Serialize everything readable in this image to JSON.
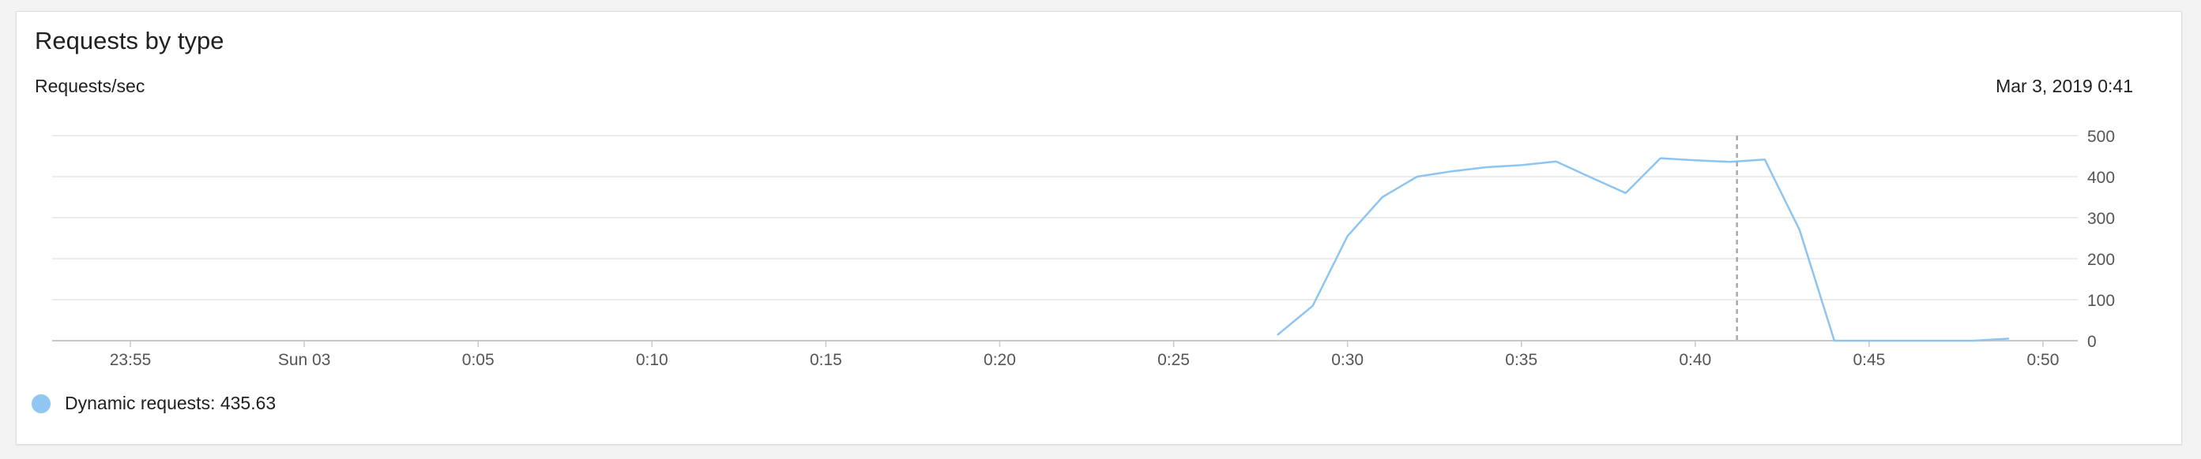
{
  "card": {
    "title": "Requests by type",
    "unit_label": "Requests/sec",
    "hover_timestamp": "Mar 3, 2019 0:41"
  },
  "legend": {
    "label": "Dynamic requests: 435.63",
    "color": "#90c7f2"
  },
  "colors": {
    "line": "#8cc5f2",
    "grid": "#e6e6e6",
    "axis": "#c8c8c8",
    "cursor": "#a8a8a8",
    "tick_text": "#555555"
  },
  "chart_data": {
    "type": "line",
    "title": "Requests by type",
    "ylabel": "Requests/sec",
    "xlabel": "",
    "x_unit": "minutes relative to 0:00 (Sun 03)",
    "xlim": [
      -7.25,
      51
    ],
    "ylim": [
      0,
      500
    ],
    "y_ticks": [
      0,
      100,
      200,
      300,
      400,
      500
    ],
    "x_ticks": [
      {
        "value": -5,
        "label": "23:55"
      },
      {
        "value": 0,
        "label": "Sun 03"
      },
      {
        "value": 5,
        "label": "0:05"
      },
      {
        "value": 10,
        "label": "0:10"
      },
      {
        "value": 15,
        "label": "0:15"
      },
      {
        "value": 20,
        "label": "0:20"
      },
      {
        "value": 25,
        "label": "0:25"
      },
      {
        "value": 30,
        "label": "0:30"
      },
      {
        "value": 35,
        "label": "0:35"
      },
      {
        "value": 40,
        "label": "0:40"
      },
      {
        "value": 45,
        "label": "0:45"
      },
      {
        "value": 50,
        "label": "0:50"
      }
    ],
    "cursor_x": 41.2,
    "grid": true,
    "y_axis_side": "right",
    "series": [
      {
        "name": "Dynamic requests",
        "x": [
          28,
          29,
          30,
          31,
          32,
          33,
          34,
          35,
          36,
          37,
          38,
          39,
          40,
          41,
          42,
          43,
          44,
          45,
          46,
          47,
          48,
          49
        ],
        "y": [
          15,
          85,
          255,
          350,
          400,
          413,
          423,
          428,
          437,
          398,
          360,
          445,
          440,
          436,
          442,
          270,
          0,
          0,
          0,
          0,
          0,
          5
        ]
      }
    ]
  }
}
